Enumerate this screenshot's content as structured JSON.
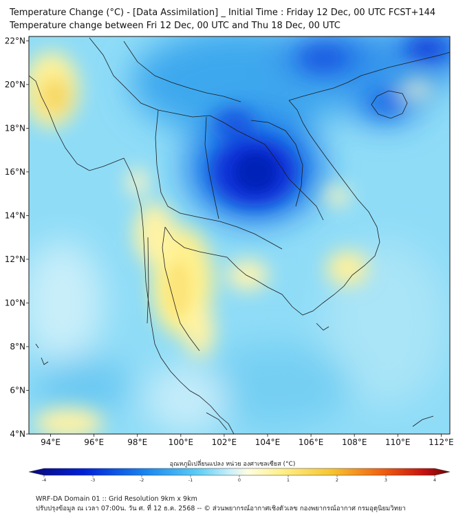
{
  "header": {
    "title_line1": "Temperature Change (°C) - [Data Assimilation] _ Initial Time : Friday 12 Dec, 00 UTC FCST+144",
    "title_line2": "Temperature change between Fri 12 Dec, 00 UTC and Thu 18 Dec, 00 UTC"
  },
  "map": {
    "lat_labels": [
      "22°N",
      "20°N",
      "18°N",
      "16°N",
      "14°N",
      "12°N",
      "10°N",
      "8°N",
      "6°N",
      "4°N"
    ],
    "lon_labels": [
      "94°E",
      "96°E",
      "98°E",
      "100°E",
      "102°E",
      "104°E",
      "106°E",
      "108°E",
      "110°E",
      "112°E"
    ],
    "lat_range": [
      4,
      22.2
    ],
    "lon_range": [
      93,
      112.4
    ],
    "colors": {
      "cold_strong": "#0018c8",
      "cold_mid": "#1f8fe8",
      "cool": "#7fd3f5",
      "neutral": "#eaf7fb",
      "warm": "#fff08a",
      "warm_mid": "#f5d25a"
    }
  },
  "colorbar": {
    "title": "อุณหภูมิเปลี่ยนแปลง หน่วย องศาเซลเซียส (°C)",
    "ticks": [
      "-4",
      "-3",
      "-2",
      "-1",
      "0",
      "1",
      "2",
      "3",
      "4"
    ],
    "range": [
      -4,
      4
    ]
  },
  "footer": {
    "line1": "WRF-DA Domain 01 :: Grid Resolution 9km x 9km",
    "line2": "ปรับปรุงข้อมูล ณ เวลา 07:00น. วัน ศ. ที่ 12 ธ.ค. 2568 -- © ส่วนพยากรณ์อากาศเชิงตัวเลข กองพยากรณ์อากาศ กรมอุตุนิยมวิทยา"
  }
}
